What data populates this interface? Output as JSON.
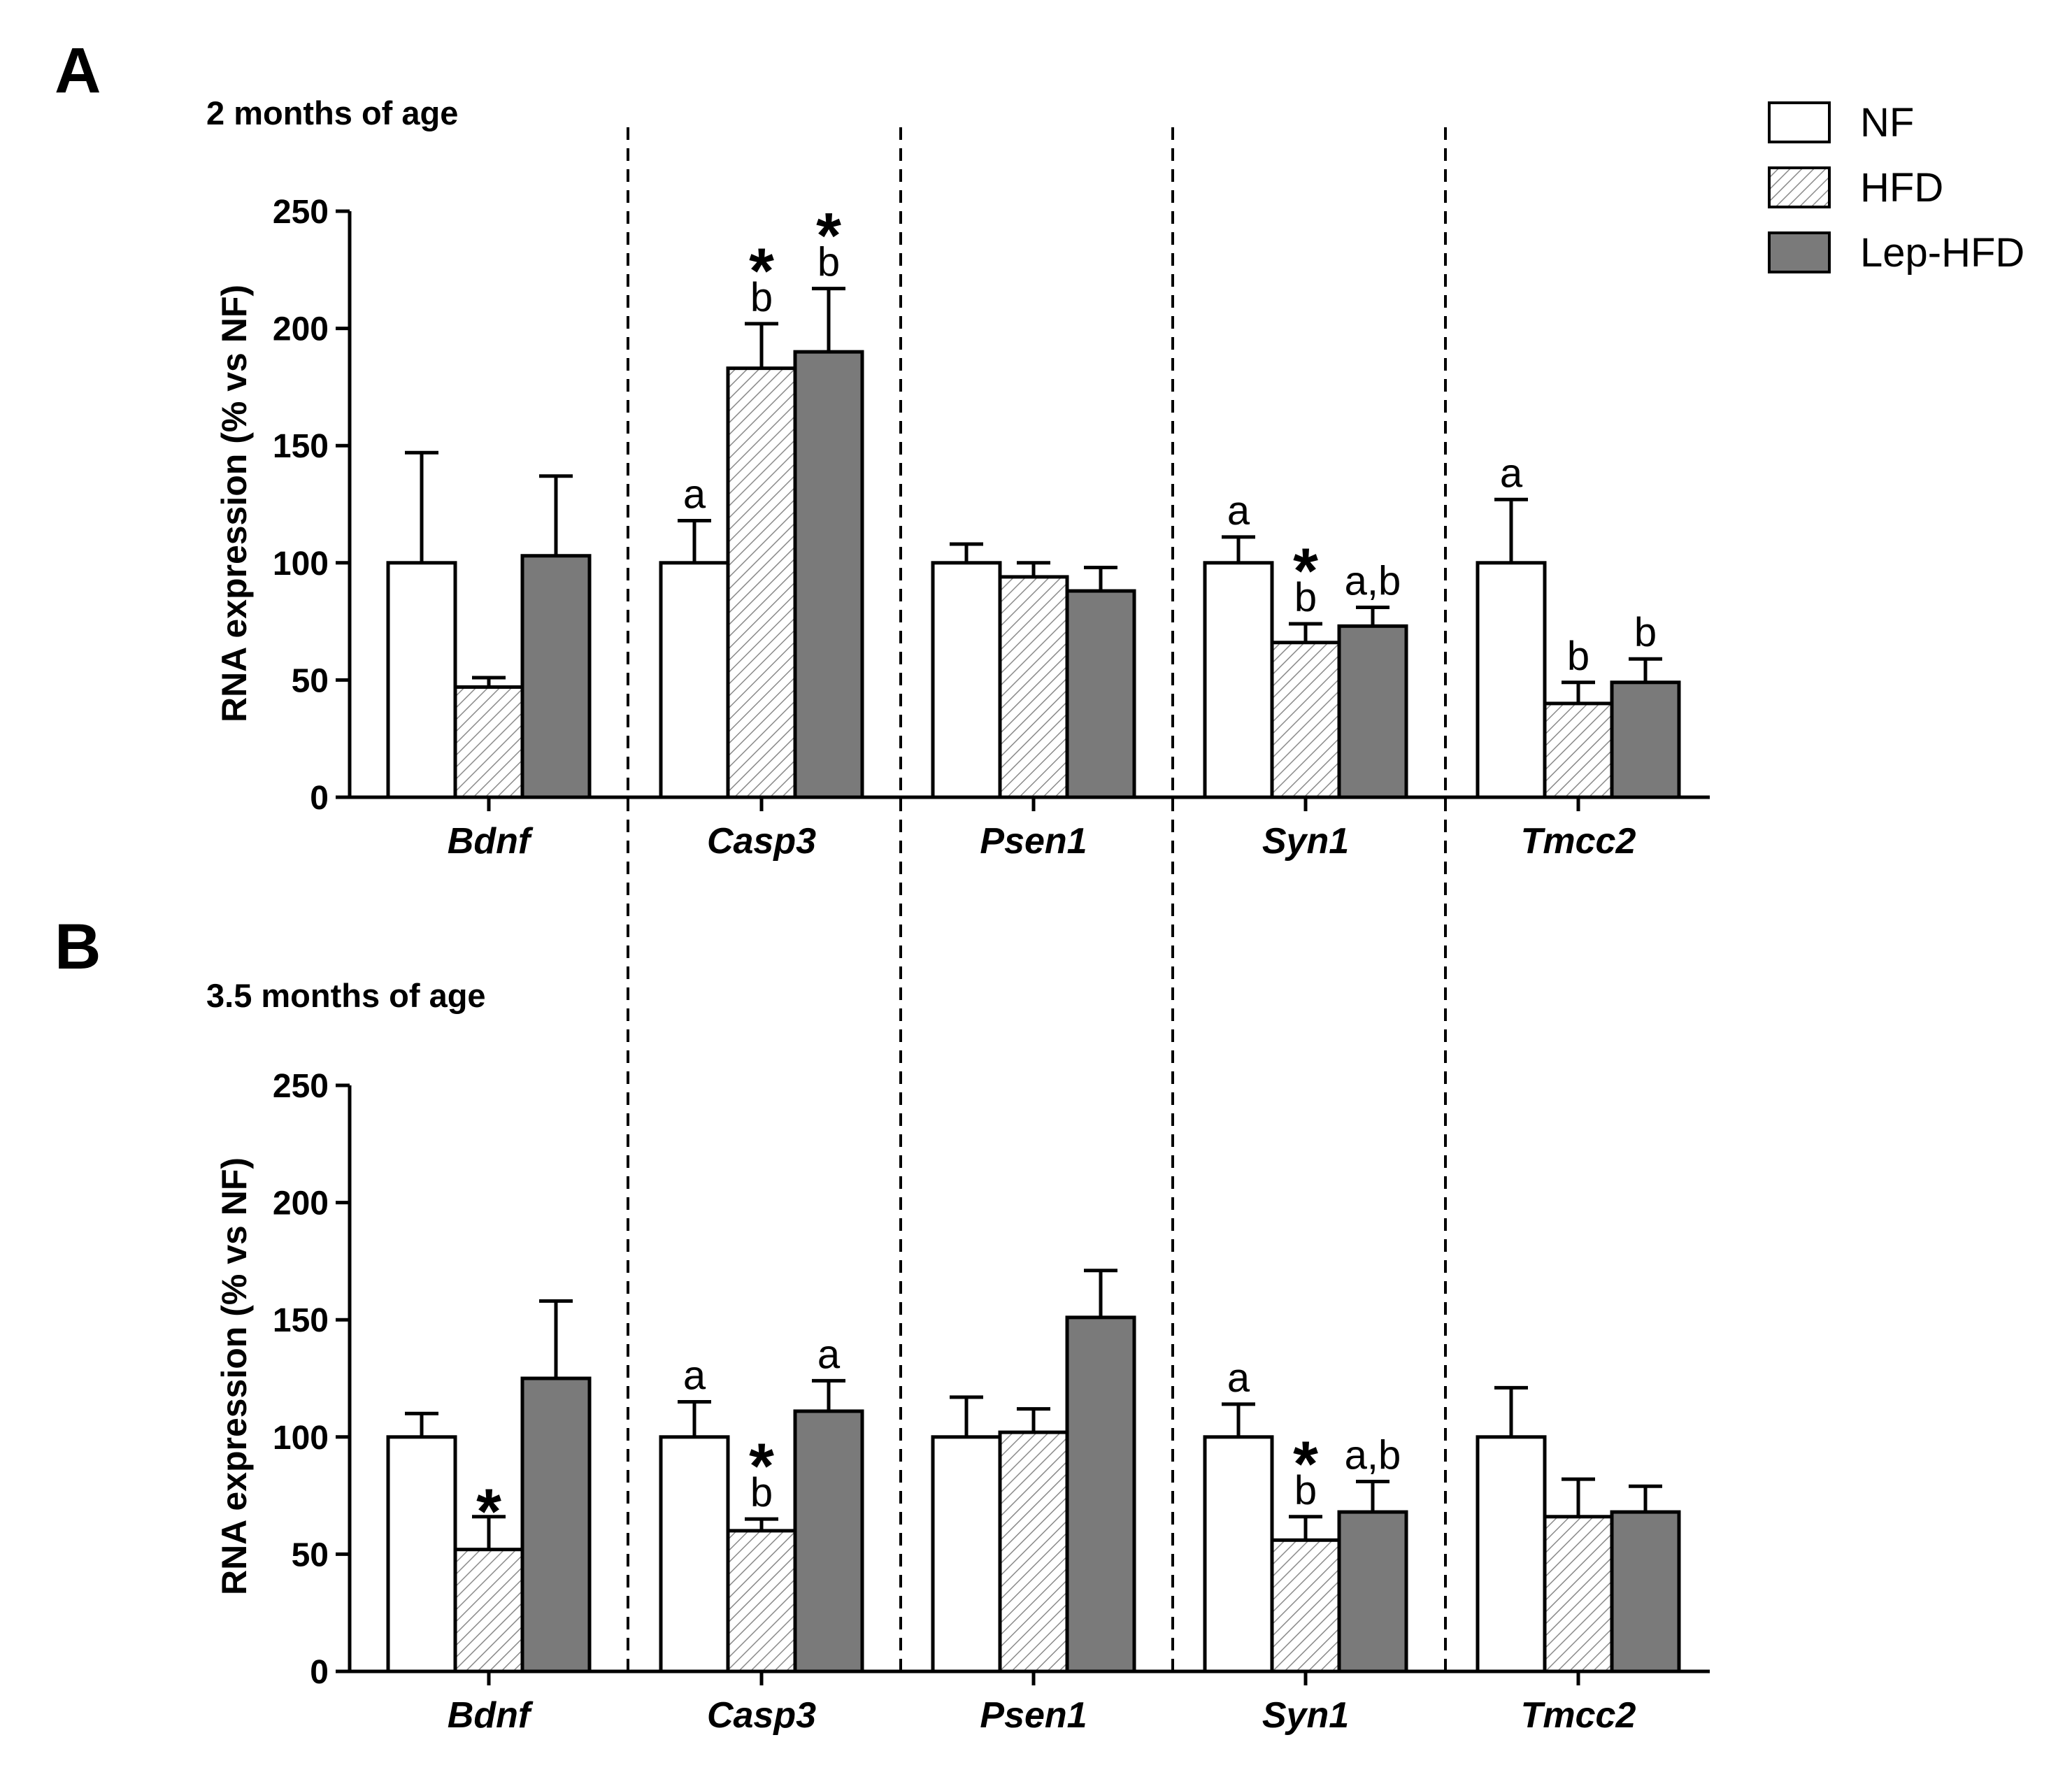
{
  "colors": {
    "NF": "#ffffff",
    "HFD_hatch": "#8a8a8a",
    "Lep-HFD": "#7a7a7a",
    "outline": "#000000"
  },
  "legend": [
    "NF",
    "HFD",
    "Lep-HFD"
  ],
  "chart_data": [
    {
      "panel": "A",
      "type": "bar",
      "title": "2 months of age",
      "ylabel": "RNA expression (% vs NF)",
      "xlabel": "",
      "ylim": [
        0,
        250
      ],
      "yticks": [
        "0",
        "50",
        "100",
        "150",
        "200",
        "250"
      ],
      "categories": [
        "Bdnf",
        "Casp3",
        "Psen1",
        "Syn1",
        "Tmcc2"
      ],
      "series": [
        {
          "name": "NF",
          "values": [
            100,
            100,
            100,
            100,
            100
          ],
          "errors": [
            47,
            18,
            8,
            11,
            27
          ],
          "labels": [
            [],
            [
              "a"
            ],
            [],
            [
              "a"
            ],
            [
              "a"
            ]
          ],
          "stars": [
            false,
            false,
            false,
            false,
            false
          ]
        },
        {
          "name": "HFD",
          "values": [
            47,
            183,
            94,
            66,
            40
          ],
          "errors": [
            4,
            19,
            6,
            8,
            9
          ],
          "labels": [
            [],
            [
              "b"
            ],
            [],
            [
              "b"
            ],
            [
              "b"
            ]
          ],
          "stars": [
            false,
            true,
            false,
            true,
            false
          ]
        },
        {
          "name": "Lep-HFD",
          "values": [
            103,
            190,
            88,
            73,
            49
          ],
          "errors": [
            34,
            27,
            10,
            8,
            10
          ],
          "labels": [
            [],
            [
              "b"
            ],
            [],
            [
              "a,b"
            ],
            [
              "b"
            ]
          ],
          "stars": [
            false,
            true,
            false,
            false,
            false
          ]
        }
      ]
    },
    {
      "panel": "B",
      "type": "bar",
      "title": "3.5 months of age",
      "ylabel": "RNA expression (% vs NF)",
      "xlabel": "",
      "ylim": [
        0,
        250
      ],
      "yticks": [
        "0",
        "50",
        "100",
        "150",
        "200",
        "250"
      ],
      "categories": [
        "Bdnf",
        "Casp3",
        "Psen1",
        "Syn1",
        "Tmcc2"
      ],
      "series": [
        {
          "name": "NF",
          "values": [
            100,
            100,
            100,
            100,
            100
          ],
          "errors": [
            10,
            15,
            17,
            14,
            21
          ],
          "labels": [
            [],
            [
              "a"
            ],
            [],
            [
              "a"
            ],
            []
          ],
          "stars": [
            false,
            false,
            false,
            false,
            false
          ]
        },
        {
          "name": "HFD",
          "values": [
            52,
            60,
            102,
            56,
            66
          ],
          "errors": [
            14,
            5,
            10,
            10,
            16
          ],
          "labels": [
            [],
            [
              "b"
            ],
            [],
            [
              "b"
            ],
            []
          ],
          "stars": [
            true,
            true,
            false,
            true,
            false
          ]
        },
        {
          "name": "Lep-HFD",
          "values": [
            125,
            111,
            151,
            68,
            68
          ],
          "errors": [
            33,
            13,
            20,
            13,
            11
          ],
          "labels": [
            [],
            [
              "a"
            ],
            [],
            [
              "a,b"
            ],
            []
          ],
          "stars": [
            false,
            false,
            false,
            false,
            false
          ]
        }
      ]
    }
  ]
}
